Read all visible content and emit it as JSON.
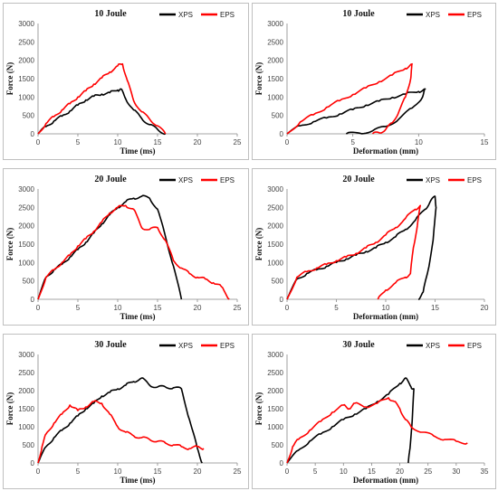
{
  "colors": {
    "XPS": "#000000",
    "EPS": "#ff0000"
  },
  "chart_data": [
    {
      "type": "line",
      "title": "10 Joule",
      "xlabel": "Time (ms)",
      "ylabel": "Force (N)",
      "xlim": [
        0,
        25
      ],
      "ylim": [
        0,
        3000
      ],
      "xticks": [
        0,
        5,
        10,
        15,
        20,
        25
      ],
      "yticks": [
        0,
        500,
        1000,
        1500,
        2000,
        2500,
        3000
      ],
      "legend": "top-right",
      "series": [
        {
          "name": "XPS",
          "x": [
            0,
            1,
            2,
            3,
            4,
            5,
            6,
            7,
            8,
            9,
            10,
            10.4,
            11,
            12,
            13,
            14,
            15,
            16
          ],
          "y": [
            0,
            200,
            350,
            480,
            620,
            780,
            920,
            1020,
            1080,
            1120,
            1190,
            1220,
            950,
            650,
            420,
            250,
            120,
            0
          ]
        },
        {
          "name": "EPS",
          "x": [
            0,
            1,
            2,
            3,
            4,
            5,
            6,
            7,
            8,
            9,
            10,
            10.6,
            11.2,
            12,
            13,
            14,
            15,
            16
          ],
          "y": [
            0,
            280,
            470,
            650,
            820,
            1000,
            1170,
            1350,
            1520,
            1680,
            1850,
            1900,
            1450,
            900,
            600,
            400,
            220,
            0
          ]
        }
      ]
    },
    {
      "type": "line",
      "title": "10 Joule",
      "xlabel": "Deformation (mm)",
      "ylabel": "Force (N)",
      "xlim": [
        0,
        15
      ],
      "ylim": [
        0,
        3000
      ],
      "xticks": [
        0,
        5,
        10,
        15
      ],
      "yticks": [
        0,
        500,
        1000,
        1500,
        2000,
        2500,
        3000
      ],
      "legend": "top-right",
      "series": [
        {
          "name": "XPS",
          "x": [
            0,
            1,
            2,
            3,
            4,
            5,
            6,
            7,
            8,
            9,
            10,
            10.5,
            10.3,
            9.5,
            8.5,
            7.5,
            6.5,
            5.5,
            4.5
          ],
          "y": [
            0,
            220,
            330,
            430,
            540,
            660,
            780,
            890,
            990,
            1080,
            1150,
            1220,
            1000,
            700,
            400,
            200,
            80,
            20,
            0
          ]
        },
        {
          "name": "EPS",
          "x": [
            0,
            1,
            2,
            3,
            4,
            5,
            6,
            7,
            8,
            9,
            9.5,
            9.4,
            9.0,
            8.5,
            8.0,
            7.5,
            7.0,
            6.5
          ],
          "y": [
            0,
            320,
            520,
            720,
            900,
            1070,
            1250,
            1420,
            1600,
            1780,
            1900,
            1500,
            1000,
            600,
            300,
            120,
            30,
            0
          ]
        }
      ]
    },
    {
      "type": "line",
      "title": "20 Joule",
      "xlabel": "Time (ms)",
      "ylabel": "Force (N)",
      "xlim": [
        0,
        25
      ],
      "ylim": [
        0,
        3000
      ],
      "xticks": [
        0,
        5,
        10,
        15,
        20,
        25
      ],
      "yticks": [
        0,
        500,
        1000,
        1500,
        2000,
        2500,
        3000
      ],
      "legend": "top-right",
      "series": [
        {
          "name": "XPS",
          "x": [
            0,
            1,
            2,
            3,
            4,
            5,
            6,
            7,
            8,
            9,
            10,
            11,
            12,
            13,
            14,
            15,
            16,
            17,
            18
          ],
          "y": [
            0,
            600,
            800,
            950,
            1150,
            1350,
            1550,
            1800,
            2050,
            2300,
            2500,
            2650,
            2750,
            2800,
            2750,
            2450,
            1700,
            900,
            0
          ]
        },
        {
          "name": "EPS",
          "x": [
            0,
            1,
            2,
            3,
            4,
            5,
            6,
            7,
            8,
            9,
            10,
            11,
            12,
            13,
            14,
            15,
            16,
            17,
            18,
            19,
            20,
            21,
            22,
            23,
            24
          ],
          "y": [
            0,
            600,
            800,
            1000,
            1200,
            1450,
            1650,
            1850,
            2100,
            2350,
            2500,
            2550,
            2450,
            1950,
            1900,
            1950,
            1600,
            1050,
            850,
            700,
            600,
            550,
            450,
            350,
            0
          ]
        }
      ]
    },
    {
      "type": "line",
      "title": "20 Joule",
      "xlabel": "Deformation (mm)",
      "ylabel": "Force (N)",
      "xlim": [
        0,
        20
      ],
      "ylim": [
        0,
        3000
      ],
      "xticks": [
        0,
        5,
        10,
        15,
        20
      ],
      "yticks": [
        0,
        500,
        1000,
        1500,
        2000,
        2500,
        3000
      ],
      "legend": "top-right",
      "series": [
        {
          "name": "XPS",
          "x": [
            0,
            1,
            2,
            3,
            4,
            5,
            6,
            7,
            8,
            9,
            10,
            11,
            12,
            13,
            14,
            14.5,
            15,
            15.1,
            14.8,
            14.3,
            13.8,
            13.3
          ],
          "y": [
            0,
            550,
            700,
            800,
            900,
            1000,
            1100,
            1200,
            1300,
            1400,
            1550,
            1700,
            1900,
            2150,
            2450,
            2650,
            2800,
            2500,
            1600,
            800,
            200,
            0
          ]
        },
        {
          "name": "EPS",
          "x": [
            0,
            1,
            2,
            3,
            4,
            5,
            6,
            7,
            8,
            9,
            10,
            11,
            12,
            13,
            13.5,
            13.2,
            12.8,
            12.5,
            12.0,
            11.0,
            10.0,
            9.2
          ],
          "y": [
            0,
            600,
            750,
            850,
            950,
            1050,
            1150,
            1250,
            1400,
            1550,
            1750,
            1950,
            2200,
            2450,
            2550,
            2000,
            1400,
            700,
            600,
            450,
            250,
            0
          ]
        }
      ]
    },
    {
      "type": "line",
      "title": "30 Joule",
      "xlabel": "Time (ms)",
      "ylabel": "Force (N)",
      "xlim": [
        0,
        25
      ],
      "ylim": [
        0,
        3000
      ],
      "xticks": [
        0,
        5,
        10,
        15,
        20,
        25
      ],
      "yticks": [
        0,
        500,
        1000,
        1500,
        2000,
        2500,
        3000
      ],
      "legend": "top-right",
      "series": [
        {
          "name": "XPS",
          "x": [
            0,
            1,
            2,
            3,
            4,
            5,
            6,
            7,
            8,
            9,
            10,
            11,
            12,
            13,
            14,
            15,
            16,
            17,
            18,
            19,
            20,
            20.6
          ],
          "y": [
            0,
            450,
            700,
            900,
            1100,
            1300,
            1500,
            1650,
            1850,
            1950,
            2050,
            2150,
            2250,
            2350,
            2150,
            2100,
            2100,
            2080,
            2050,
            1200,
            400,
            0
          ]
        },
        {
          "name": "EPS",
          "x": [
            0,
            0.5,
            1,
            2,
            3,
            4,
            5,
            6,
            7,
            8,
            9,
            10,
            11,
            12,
            13,
            14,
            15,
            16,
            17,
            18,
            19,
            20,
            20.8
          ],
          "y": [
            0,
            450,
            800,
            1100,
            1350,
            1600,
            1450,
            1550,
            1700,
            1650,
            1350,
            1000,
            850,
            750,
            700,
            650,
            600,
            550,
            500,
            450,
            400,
            450,
            400
          ]
        }
      ]
    },
    {
      "type": "line",
      "title": "30 Joule",
      "xlabel": "Deformation (mm)",
      "ylabel": "Force (N)",
      "xlim": [
        0,
        35
      ],
      "ylim": [
        0,
        3000
      ],
      "xticks": [
        0,
        5,
        10,
        15,
        20,
        25,
        30,
        35
      ],
      "yticks": [
        0,
        500,
        1000,
        1500,
        2000,
        2500,
        3000
      ],
      "legend": "top-right",
      "series": [
        {
          "name": "XPS",
          "x": [
            0,
            2,
            4,
            6,
            8,
            10,
            12,
            14,
            16,
            18,
            20,
            21,
            22,
            22.5,
            22.2,
            21.8,
            21.5
          ],
          "y": [
            0,
            350,
            600,
            800,
            1000,
            1200,
            1350,
            1500,
            1700,
            1900,
            2200,
            2350,
            2100,
            2050,
            1200,
            400,
            0
          ]
        },
        {
          "name": "EPS",
          "x": [
            0,
            1,
            2,
            4,
            6,
            8,
            10,
            11,
            12,
            14,
            16,
            18,
            19,
            20,
            21,
            22,
            24,
            26,
            28,
            30,
            32
          ],
          "y": [
            0,
            450,
            650,
            900,
            1150,
            1400,
            1600,
            1500,
            1650,
            1550,
            1650,
            1800,
            1700,
            1500,
            1200,
            1000,
            850,
            750,
            650,
            600,
            550
          ]
        }
      ]
    }
  ]
}
